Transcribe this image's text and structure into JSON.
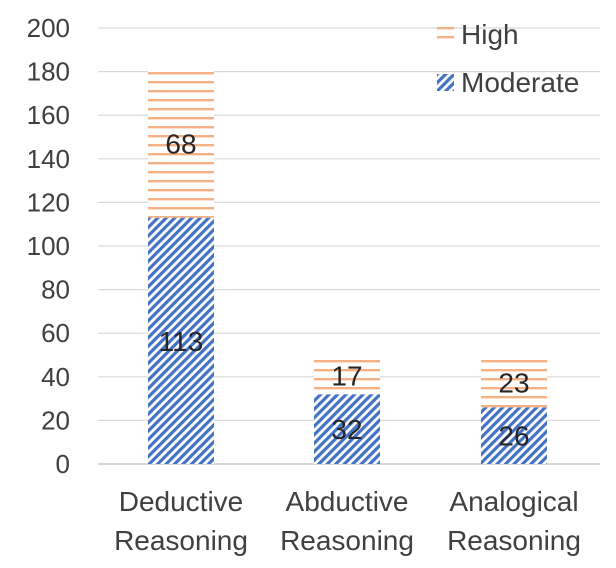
{
  "chart_data": {
    "type": "bar",
    "stacked": true,
    "title": "",
    "xlabel": "",
    "ylabel": "",
    "categories": [
      [
        "Deductive",
        "Reasoning"
      ],
      [
        "Abductive",
        "Reasoning"
      ],
      [
        "Analogical",
        "Reasoning"
      ]
    ],
    "series": [
      {
        "name": "Moderate",
        "values": [
          113,
          32,
          26
        ],
        "color": "#4472c4",
        "pattern": "diagonal-stripes"
      },
      {
        "name": "High",
        "values": [
          68,
          17,
          23
        ],
        "color": "#f4b183",
        "pattern": "horizontal-stripes"
      }
    ],
    "ylim": [
      0,
      200
    ],
    "yticks": [
      0,
      20,
      40,
      60,
      80,
      100,
      120,
      140,
      160,
      180,
      200
    ],
    "grid": true,
    "legend": "top-right",
    "legend_order": [
      "High",
      "Moderate"
    ]
  }
}
